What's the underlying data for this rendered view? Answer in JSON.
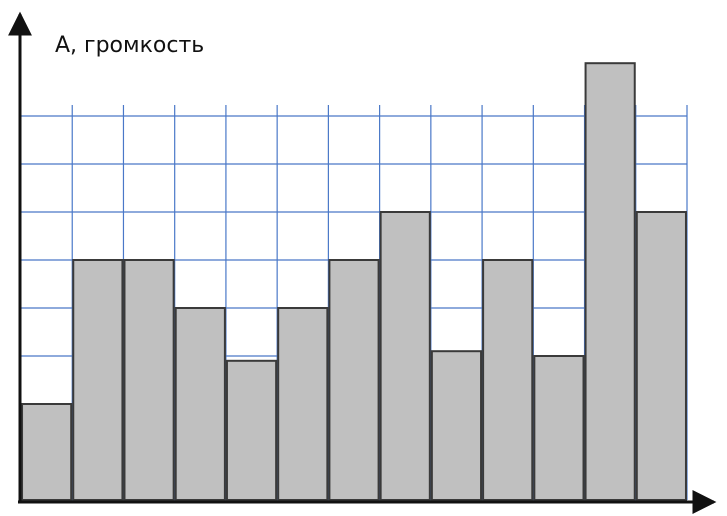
{
  "chart_data": {
    "type": "bar",
    "y_label": "А, громкость",
    "categories": [
      null,
      null,
      null,
      null,
      null,
      null,
      null,
      null,
      null,
      null,
      null,
      null,
      null
    ],
    "values": [
      2,
      5,
      5,
      4,
      2.9,
      4,
      5,
      6,
      3.1,
      5,
      3,
      9.1,
      6
    ],
    "color": "#c0c0c0",
    "ylim": [
      0,
      10
    ],
    "yticks": [
      0,
      1,
      2,
      3,
      4,
      5,
      6,
      7,
      8
    ],
    "grid": true,
    "grid_color": "#4a78c8"
  }
}
